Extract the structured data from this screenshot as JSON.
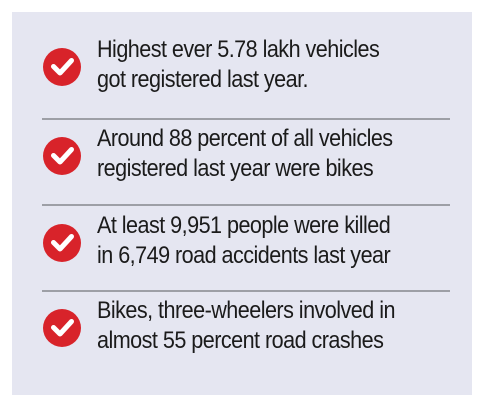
{
  "items": [
    {
      "icon": "check-circle-icon",
      "lines": [
        "Highest ever 5.78 lakh vehicles",
        "got registered last year."
      ]
    },
    {
      "icon": "check-circle-icon",
      "lines": [
        "Around 88 percent of all vehicles",
        "registered last year were bikes"
      ]
    },
    {
      "icon": "check-circle-icon",
      "lines": [
        "At least 9,951 people were killed",
        "in 6,749 road accidents last year"
      ]
    },
    {
      "icon": "check-circle-icon",
      "lines": [
        "Bikes, three-wheelers involved in",
        "almost 55 percent road crashes"
      ]
    }
  ],
  "colors": {
    "panel_background": "#e5e6f1",
    "check_icon": "#d8232a",
    "divider": "#9d9fa6",
    "text": "#1b1b1b"
  }
}
